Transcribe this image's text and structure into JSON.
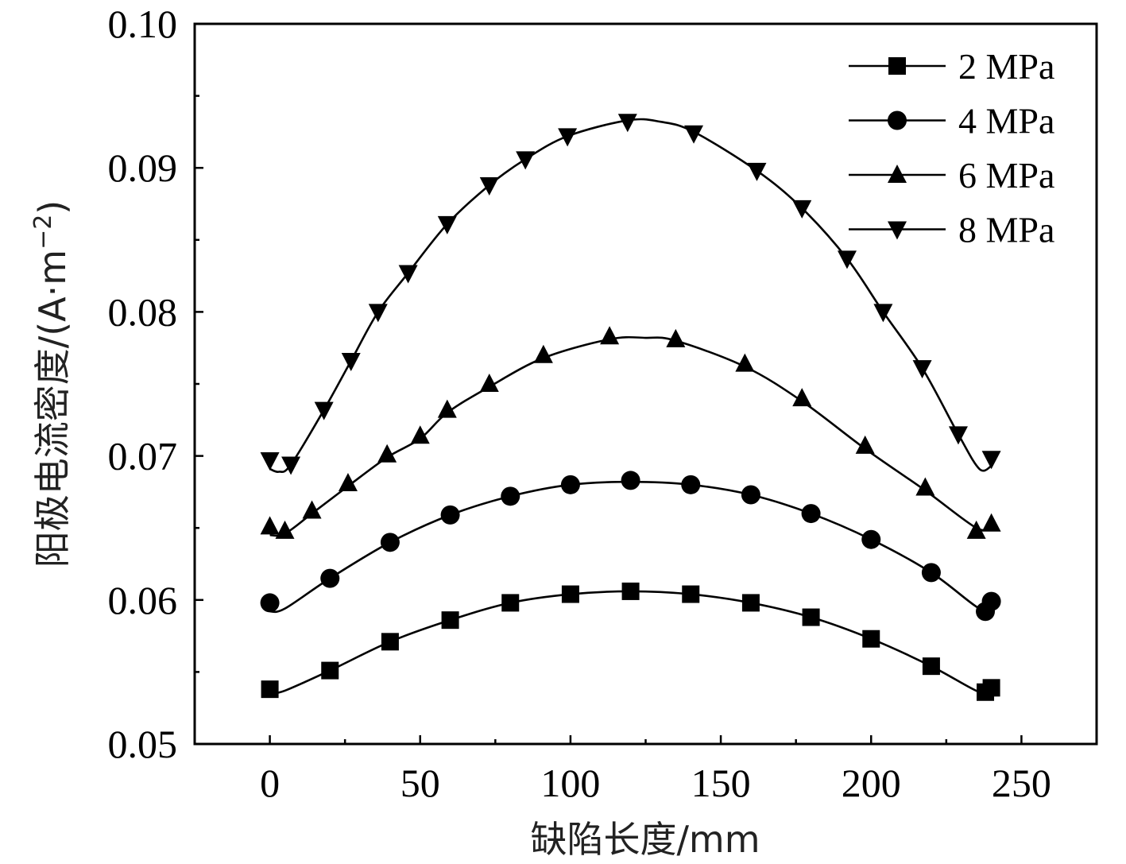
{
  "chart_data": {
    "type": "line",
    "title": "",
    "xlabel": "缺陷长度/mm",
    "ylabel": "阳极电流密度/(A·m",
    "ylabel_sup": "−2",
    "ylabel_close": ")",
    "xlim": [
      -25,
      275
    ],
    "ylim": [
      0.05,
      0.1
    ],
    "xticks": [
      0,
      50,
      100,
      150,
      200,
      250
    ],
    "xtick_labels": [
      "0",
      "50",
      "100",
      "150",
      "200",
      "250"
    ],
    "yticks": [
      0.05,
      0.06,
      0.07,
      0.08,
      0.09,
      0.1
    ],
    "ytick_labels": [
      "0.05",
      "0.06",
      "0.07",
      "0.08",
      "0.09",
      "0.10"
    ],
    "legend_position": "top-right",
    "series": [
      {
        "name": "2 MPa",
        "marker": "square",
        "x": [
          0,
          20,
          40,
          60,
          80,
          100,
          120,
          140,
          160,
          180,
          200,
          220,
          238,
          240
        ],
        "y": [
          0.0538,
          0.0551,
          0.0571,
          0.0586,
          0.0598,
          0.0604,
          0.0606,
          0.0604,
          0.0598,
          0.0588,
          0.0573,
          0.0554,
          0.0536,
          0.0539
        ],
        "curve_x": [
          0,
          5,
          20,
          40,
          60,
          80,
          100,
          120,
          140,
          160,
          180,
          200,
          220,
          236,
          240
        ],
        "curve_y": [
          0.0535,
          0.0537,
          0.0551,
          0.0571,
          0.0586,
          0.0598,
          0.0604,
          0.0606,
          0.0604,
          0.0598,
          0.0588,
          0.0573,
          0.0554,
          0.0536,
          0.0538
        ]
      },
      {
        "name": "4 MPa",
        "marker": "circle",
        "x": [
          0,
          20,
          40,
          60,
          80,
          100,
          120,
          140,
          160,
          180,
          200,
          220,
          238,
          240
        ],
        "y": [
          0.0598,
          0.0615,
          0.064,
          0.0659,
          0.0672,
          0.068,
          0.0683,
          0.068,
          0.0673,
          0.066,
          0.0642,
          0.0619,
          0.0592,
          0.0599
        ],
        "curve_x": [
          0,
          5,
          20,
          40,
          60,
          80,
          100,
          120,
          140,
          160,
          180,
          200,
          220,
          236,
          240
        ],
        "curve_y": [
          0.0592,
          0.0594,
          0.0615,
          0.064,
          0.0659,
          0.0672,
          0.068,
          0.0682,
          0.068,
          0.0673,
          0.066,
          0.0642,
          0.0619,
          0.0594,
          0.0596
        ]
      },
      {
        "name": "6 MPa",
        "marker": "triangle-up",
        "x": [
          0,
          5,
          14,
          26,
          39,
          50,
          59,
          73,
          91,
          113,
          135,
          158,
          177,
          198,
          218,
          235,
          240
        ],
        "y": [
          0.0651,
          0.0648,
          0.0662,
          0.0681,
          0.0701,
          0.0714,
          0.0732,
          0.075,
          0.077,
          0.0783,
          0.0781,
          0.0764,
          0.074,
          0.0707,
          0.0678,
          0.0648,
          0.0653
        ],
        "curve_x": [
          0,
          5,
          14,
          26,
          39,
          50,
          59,
          73,
          91,
          113,
          125,
          135,
          158,
          177,
          198,
          218,
          235,
          240
        ],
        "curve_y": [
          0.0645,
          0.0646,
          0.066,
          0.0679,
          0.0699,
          0.0712,
          0.073,
          0.0748,
          0.0768,
          0.0781,
          0.0782,
          0.078,
          0.0762,
          0.0738,
          0.0705,
          0.0676,
          0.065,
          0.0651
        ]
      },
      {
        "name": "8 MPa",
        "marker": "triangle-down",
        "x": [
          0,
          7,
          18,
          27,
          36,
          46,
          59,
          73,
          85,
          99,
          119,
          141,
          162,
          177,
          192,
          204,
          217,
          229,
          240
        ],
        "y": [
          0.0697,
          0.0694,
          0.0732,
          0.0766,
          0.08,
          0.0827,
          0.0861,
          0.0888,
          0.0906,
          0.0922,
          0.0932,
          0.0924,
          0.0898,
          0.0872,
          0.0837,
          0.08,
          0.0761,
          0.0715,
          0.0698
        ],
        "curve_x": [
          0,
          3,
          7,
          18,
          27,
          36,
          46,
          59,
          73,
          85,
          99,
          119,
          130,
          141,
          162,
          177,
          192,
          204,
          217,
          229,
          236,
          240
        ],
        "curve_y": [
          0.0691,
          0.0689,
          0.0694,
          0.0732,
          0.0766,
          0.08,
          0.0827,
          0.0861,
          0.0888,
          0.0906,
          0.0922,
          0.0933,
          0.0932,
          0.0925,
          0.0898,
          0.0872,
          0.0837,
          0.08,
          0.0761,
          0.0715,
          0.0691,
          0.0693
        ]
      }
    ]
  }
}
